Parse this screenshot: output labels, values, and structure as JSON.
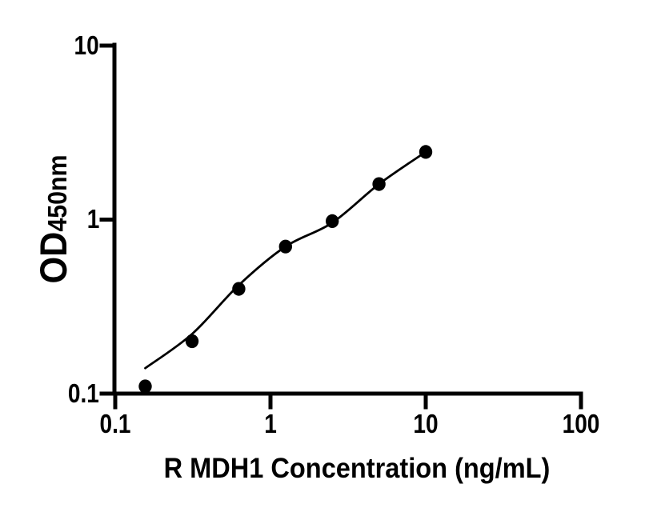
{
  "figure": {
    "background": "#ffffff",
    "foreground": "#000000"
  },
  "chart_data": {
    "type": "scatter",
    "title": "",
    "xlabel": "R MDH1 Concentration (ng/mL)",
    "ylabel_main": "OD",
    "ylabel_sub": "450nm",
    "xscale": "log",
    "yscale": "log",
    "xlim": [
      0.1,
      100
    ],
    "ylim": [
      0.1,
      10
    ],
    "grid": false,
    "legend": "none",
    "x_tick_values": [
      0.1,
      1,
      10,
      100
    ],
    "x_tick_labels": [
      "0.1",
      "1",
      "10",
      "100"
    ],
    "y_tick_values": [
      10,
      1,
      0.1
    ],
    "y_tick_labels": [
      "10",
      "1",
      "0.1"
    ],
    "series": [
      {
        "name": "standard-points",
        "marker": "filled-circle",
        "x": [
          0.156,
          0.3125,
          0.625,
          1.25,
          2.5,
          5,
          10
        ],
        "y": [
          0.11,
          0.2,
          0.4,
          0.7,
          0.98,
          1.6,
          2.45
        ]
      }
    ],
    "fit_line": {
      "name": "fit-curve",
      "x": [
        0.156,
        0.3125,
        0.625,
        1.25,
        2.5,
        5,
        10
      ],
      "y": [
        0.14,
        0.22,
        0.42,
        0.7,
        0.96,
        1.6,
        2.45
      ]
    },
    "marker_color": "#000000",
    "line_color": "#000000",
    "axis_color": "#000000"
  }
}
